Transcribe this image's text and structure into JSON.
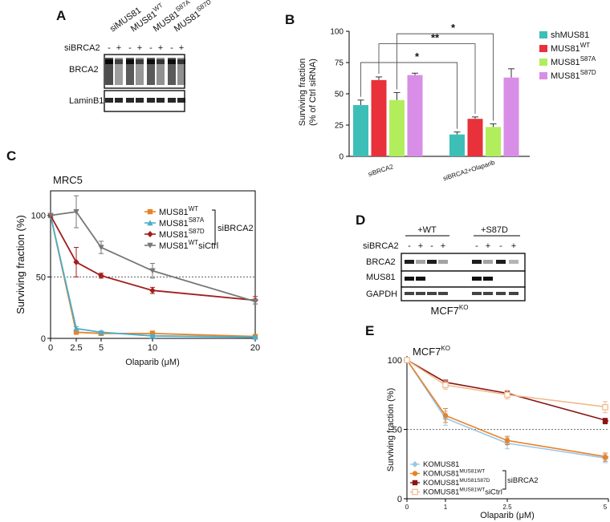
{
  "figure": {
    "panels": [
      "A",
      "B",
      "C",
      "D",
      "E"
    ]
  },
  "panel_a": {
    "lanes": [
      "siMUS81",
      "MUS81",
      "MUS81",
      "MUS81"
    ],
    "lane_sup": [
      "",
      "WT",
      "S87A",
      "S87D"
    ],
    "treatment": "siBRCA2",
    "signs": [
      "-",
      "+",
      "-",
      "+",
      "-",
      "+",
      "-",
      "+"
    ],
    "blots": [
      "BRCA2",
      "LaminB1"
    ]
  },
  "panel_c": {
    "cell_line": "MRC5",
    "legend_base": [
      "MUS81",
      "MUS81",
      "MUS81",
      "MUS81"
    ],
    "legend_sup": [
      "WT",
      "S87A",
      "S87D",
      "WT"
    ],
    "legend_suffix": [
      "",
      "",
      "",
      "siCtrl"
    ],
    "bracket_label": "siBRCA2"
  },
  "panel_d": {
    "groups": [
      "+WT",
      "+S87D"
    ],
    "treatment": "siBRCA2",
    "signs": [
      "-",
      "+",
      "-",
      "+",
      "-",
      "+",
      "-",
      "+"
    ],
    "blots": [
      "BRCA2",
      "MUS81",
      "GAPDH"
    ],
    "caption_base": "MCF7",
    "caption_sup": "KO"
  },
  "panel_e": {
    "title_base": "MCF7",
    "title_sup": "KO",
    "legend_base": [
      "KOMUS81",
      "KOMUS81",
      "KOMUS81",
      "KOMUS81"
    ],
    "legend_sup": [
      "",
      "MUS81WT",
      "MUS81S87D",
      "MUS81WT"
    ],
    "legend_suffix": [
      "",
      "",
      "",
      "siCtrl"
    ],
    "bracket_label": "siBRCA2"
  },
  "chart_data": [
    {
      "id": "B",
      "type": "bar",
      "title": "",
      "xlabel": "",
      "ylabel": "Surviving fraction\n(% of Ctrl siRNA)",
      "ylim": [
        0,
        100
      ],
      "yticks": [
        0,
        25,
        50,
        75,
        100
      ],
      "categories": [
        "siBRCA2",
        "siBRCA2+Olaparib"
      ],
      "series": [
        {
          "name": "shMUS81",
          "name_sup": "",
          "color": "#3dbfb8",
          "values": [
            41,
            17.5
          ],
          "errors": [
            4,
            2
          ]
        },
        {
          "name": "MUS81",
          "name_sup": "WT",
          "color": "#e8313a",
          "values": [
            61,
            30
          ],
          "errors": [
            2.5,
            1.5
          ]
        },
        {
          "name": "MUS81",
          "name_sup": "S87A",
          "color": "#b2ee5c",
          "values": [
            45,
            23.5
          ],
          "errors": [
            6,
            2.5
          ]
        },
        {
          "name": "MUS81",
          "name_sup": "S87D",
          "color": "#d88ee6",
          "values": [
            65,
            63
          ],
          "errors": [
            1.5,
            7
          ]
        }
      ],
      "significance": [
        "*",
        "**",
        "*"
      ],
      "legend_position": "right"
    },
    {
      "id": "C",
      "type": "line",
      "title": "MRC5",
      "xlabel": "Olaparib (μM)",
      "ylabel": "Surviving fraction (%)",
      "x": [
        0,
        2.5,
        5,
        10,
        20
      ],
      "xtick_labels": [
        "0",
        "2.5",
        "5",
        "10",
        "20"
      ],
      "yticks": [
        0,
        50,
        100
      ],
      "ylim": [
        0,
        120
      ],
      "reference_line": 50,
      "series": [
        {
          "name": "MUS81 WT siBRCA2",
          "color": "#e8822a",
          "marker": "square",
          "values": [
            100,
            5,
            4,
            4,
            1.5
          ],
          "errors": [
            0,
            1,
            1,
            2,
            0.8
          ]
        },
        {
          "name": "MUS81 S87A siBRCA2",
          "color": "#4aaec9",
          "marker": "triangle",
          "values": [
            100,
            8,
            5,
            2,
            1
          ],
          "errors": [
            0,
            1.5,
            1,
            1,
            0.5
          ]
        },
        {
          "name": "MUS81 S87D siBRCA2",
          "color": "#a31d1d",
          "marker": "diamond",
          "values": [
            100,
            62,
            51,
            39,
            31
          ],
          "errors": [
            0,
            12,
            2,
            2.5,
            3
          ]
        },
        {
          "name": "MUS81 WT siCtrl",
          "color": "#777777",
          "marker": "triangle-down",
          "values": [
            100,
            103,
            74,
            55,
            30
          ],
          "errors": [
            0,
            13,
            5,
            6,
            2
          ]
        }
      ],
      "legend_position": "top-right"
    },
    {
      "id": "E",
      "type": "line",
      "title": "MCF7 KO",
      "xlabel": "Olaparib (μM)",
      "ylabel": "Surviving fraction (%)",
      "x": [
        0,
        1,
        2.5,
        5
      ],
      "xtick_labels": [
        "0",
        "1",
        "2.5",
        "5"
      ],
      "yticks": [
        0,
        50,
        100
      ],
      "ylim": [
        0,
        100
      ],
      "reference_line": 50,
      "series": [
        {
          "name": "KOMUS81 siBRCA2",
          "color": "#9cc6e6",
          "marker": "diamond",
          "values": [
            100,
            58,
            40,
            29
          ],
          "errors": [
            0,
            5,
            4,
            3
          ]
        },
        {
          "name": "KOMUS81 MUS81WT siBRCA2",
          "color": "#e8822a",
          "marker": "circle",
          "values": [
            100,
            60,
            42,
            30
          ],
          "errors": [
            0,
            5,
            3,
            3
          ]
        },
        {
          "name": "KOMUS81 MUS81S87D siBRCA2",
          "color": "#8a1515",
          "marker": "square",
          "values": [
            100,
            84,
            76,
            56
          ],
          "errors": [
            0,
            1.5,
            2,
            2
          ]
        },
        {
          "name": "KOMUS81 MUS81WT siCtrl",
          "color": "#f0b98a",
          "marker": "square-open",
          "values": [
            100,
            82,
            75,
            66
          ],
          "errors": [
            0,
            3,
            3,
            4
          ]
        }
      ],
      "legend_position": "bottom-left"
    }
  ]
}
